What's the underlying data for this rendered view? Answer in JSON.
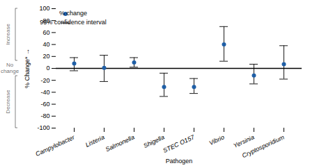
{
  "chart_data": {
    "type": "scatter",
    "xlabel": "Pathogen",
    "ylabel": "% Change*",
    "categories": [
      "Campylobacter",
      "Listeria",
      "Salmonella",
      "Shigella",
      "STEC O157",
      "Vibrio",
      "Yersinia",
      "Cryptosporidium"
    ],
    "series": [
      {
        "name": "% change",
        "type": "scatter",
        "color": "#1f5fa6",
        "values": [
          8,
          1,
          10,
          -31,
          -31,
          40,
          -12,
          7
        ]
      },
      {
        "name": "95% confidence interval",
        "type": "errorbar",
        "color": "#1a1a1a",
        "lower": [
          -4,
          -22,
          2,
          -47,
          -42,
          12,
          -26,
          -18
        ],
        "upper": [
          18,
          22,
          18,
          -8,
          -17,
          70,
          7,
          38
        ]
      }
    ],
    "ylim": [
      -100,
      100
    ],
    "yticks": [
      -100,
      -80,
      -60,
      -40,
      -20,
      0,
      20,
      40,
      60,
      80,
      100
    ],
    "grid": false,
    "legend": "upper left",
    "annotations": [
      "Increase",
      "No\nchange",
      "Decrease"
    ]
  }
}
